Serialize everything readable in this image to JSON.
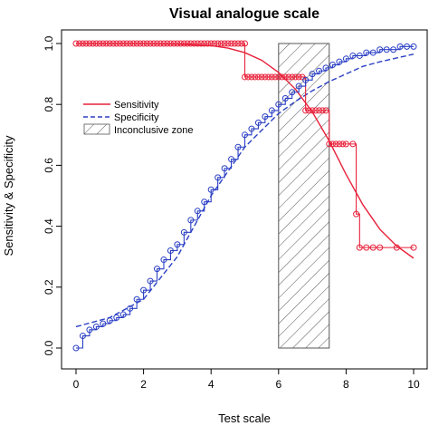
{
  "chart_data": {
    "type": "line",
    "title": "Visual analogue scale",
    "xlabel": "Test scale",
    "ylabel": "Sensitivity & Specificity",
    "xlim": [
      0,
      10
    ],
    "ylim": [
      0,
      1
    ],
    "x_ticks": [
      "0",
      "2",
      "4",
      "6",
      "8",
      "10"
    ],
    "y_ticks": [
      "0.0",
      "0.2",
      "0.4",
      "0.6",
      "0.8",
      "1.0"
    ],
    "legend_position": "left",
    "grid": false,
    "inconclusive_zone": {
      "name": "Inconclusive zone",
      "x_range": [
        6.0,
        7.5
      ],
      "y_range": [
        0,
        1
      ],
      "color": "#555555",
      "fill": "hatched"
    },
    "series": [
      {
        "name": "Sensitivity",
        "kind": "fitted",
        "style": "solid",
        "color": "#e8213a",
        "x": [
          0,
          1,
          2,
          3,
          4,
          4.5,
          5,
          5.5,
          6,
          6.5,
          7,
          7.5,
          8,
          8.5,
          9,
          9.5,
          10
        ],
        "y": [
          1.0,
          1.0,
          1.0,
          0.998,
          0.993,
          0.985,
          0.97,
          0.945,
          0.905,
          0.85,
          0.775,
          0.68,
          0.57,
          0.47,
          0.39,
          0.335,
          0.295
        ]
      },
      {
        "name": "Specificity",
        "kind": "fitted",
        "style": "dashed",
        "color": "#2a3fc4",
        "x": [
          0,
          1,
          2,
          3,
          4,
          5,
          6,
          6.5,
          7,
          7.5,
          8,
          8.5,
          9,
          10
        ],
        "y": [
          0.07,
          0.1,
          0.16,
          0.3,
          0.5,
          0.66,
          0.77,
          0.81,
          0.845,
          0.875,
          0.9,
          0.925,
          0.94,
          0.965
        ]
      },
      {
        "name": "Sensitivity",
        "kind": "empirical",
        "style": "step",
        "color": "#e8213a",
        "x": [
          0,
          0.1,
          0.2,
          0.3,
          0.4,
          0.5,
          0.6,
          0.7,
          0.8,
          0.9,
          1.0,
          1.1,
          1.2,
          1.3,
          1.4,
          1.5,
          1.6,
          1.7,
          1.8,
          1.9,
          2.0,
          2.1,
          2.2,
          2.3,
          2.4,
          2.5,
          2.6,
          2.7,
          2.8,
          2.9,
          3.0,
          3.1,
          3.2,
          3.3,
          3.4,
          3.5,
          3.6,
          3.7,
          3.8,
          3.9,
          4.0,
          4.1,
          4.2,
          4.3,
          4.4,
          4.5,
          4.6,
          4.7,
          4.8,
          4.9,
          5.0,
          5.0,
          5.1,
          5.2,
          5.3,
          5.4,
          5.5,
          5.6,
          5.7,
          5.8,
          5.9,
          6.0,
          6.1,
          6.2,
          6.3,
          6.4,
          6.5,
          6.6,
          6.7,
          6.8,
          6.9,
          7.0,
          7.1,
          7.2,
          7.3,
          7.4,
          7.5,
          7.6,
          7.7,
          7.8,
          7.9,
          8.0,
          8.2,
          8.3,
          8.4,
          8.6,
          8.8,
          9.0,
          9.5,
          10.0
        ],
        "y": [
          1,
          1,
          1,
          1,
          1,
          1,
          1,
          1,
          1,
          1,
          1,
          1,
          1,
          1,
          1,
          1,
          1,
          1,
          1,
          1,
          1,
          1,
          1,
          1,
          1,
          1,
          1,
          1,
          1,
          1,
          1,
          1,
          1,
          1,
          1,
          1,
          1,
          1,
          1,
          1,
          1,
          1,
          1,
          1,
          1,
          1,
          1,
          1,
          1,
          1,
          1,
          0.89,
          0.89,
          0.89,
          0.89,
          0.89,
          0.89,
          0.89,
          0.89,
          0.89,
          0.89,
          0.89,
          0.89,
          0.89,
          0.89,
          0.89,
          0.89,
          0.89,
          0.89,
          0.78,
          0.78,
          0.78,
          0.78,
          0.78,
          0.78,
          0.78,
          0.67,
          0.67,
          0.67,
          0.67,
          0.67,
          0.67,
          0.67,
          0.44,
          0.33,
          0.33,
          0.33,
          0.33,
          0.33,
          0.33
        ]
      },
      {
        "name": "Specificity",
        "kind": "empirical",
        "style": "step",
        "color": "#2a3fc4",
        "x": [
          0,
          0.2,
          0.4,
          0.6,
          0.8,
          1.0,
          1.2,
          1.4,
          1.6,
          1.8,
          2.0,
          2.2,
          2.4,
          2.6,
          2.8,
          3.0,
          3.2,
          3.4,
          3.6,
          3.8,
          4.0,
          4.2,
          4.4,
          4.6,
          4.8,
          5.0,
          5.2,
          5.4,
          5.6,
          5.8,
          6.0,
          6.2,
          6.4,
          6.6,
          6.8,
          7.0,
          7.2,
          7.4,
          7.6,
          7.8,
          8.0,
          8.2,
          8.4,
          8.6,
          8.8,
          9.0,
          9.2,
          9.4,
          9.6,
          9.8,
          10.0
        ],
        "y": [
          0.0,
          0.04,
          0.06,
          0.07,
          0.08,
          0.09,
          0.1,
          0.11,
          0.13,
          0.16,
          0.19,
          0.22,
          0.26,
          0.29,
          0.32,
          0.34,
          0.38,
          0.42,
          0.45,
          0.48,
          0.52,
          0.56,
          0.59,
          0.62,
          0.66,
          0.7,
          0.72,
          0.74,
          0.76,
          0.78,
          0.8,
          0.82,
          0.84,
          0.86,
          0.88,
          0.9,
          0.91,
          0.92,
          0.93,
          0.94,
          0.95,
          0.96,
          0.96,
          0.97,
          0.97,
          0.98,
          0.98,
          0.98,
          0.99,
          0.99,
          0.99
        ]
      }
    ]
  }
}
